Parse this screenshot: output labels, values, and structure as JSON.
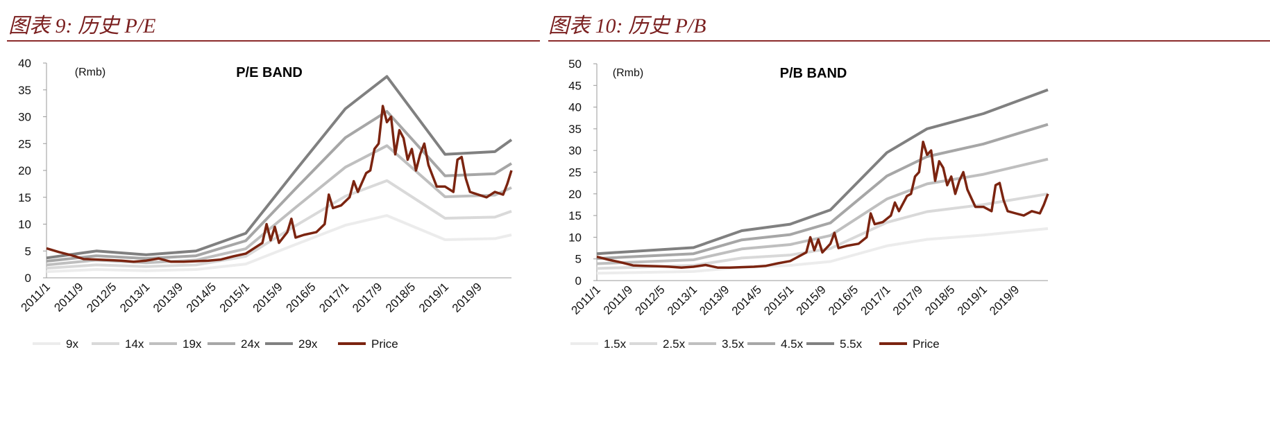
{
  "titles": {
    "left": "图表 9:  历史 P/E",
    "right": "图表 10:  历史 P/B"
  },
  "colors": {
    "title": "#7a1f1f",
    "price": "#7b2410"
  },
  "chart_data": [
    {
      "type": "line",
      "title": "P/E BAND",
      "unit_label": "(Rmb)",
      "ylim": [
        0,
        40
      ],
      "yticks": [
        0,
        5,
        10,
        15,
        20,
        25,
        30,
        35,
        40
      ],
      "xticks": [
        "2011/1",
        "2011/9",
        "2012/5",
        "2013/1",
        "2013/9",
        "2014/5",
        "2015/1",
        "2015/9",
        "2016/5",
        "2017/1",
        "2017/9",
        "2018/5",
        "2019/1",
        "2019/9"
      ],
      "xrange": [
        "2011/1",
        "2020/5"
      ],
      "legend": "bottom",
      "band_dates": [
        "2011/1",
        "2012/1",
        "2013/1",
        "2014/1",
        "2015/1",
        "2016/1",
        "2017/1",
        "2017/11",
        "2019/1",
        "2020/1",
        "2020/5"
      ],
      "series": [
        {
          "name": "9x",
          "color": "#ececec",
          "values": [
            1.15,
            1.55,
            1.33,
            1.55,
            2.57,
            6.2,
            9.8,
            11.6,
            7.1,
            7.3,
            8.0
          ]
        },
        {
          "name": "14x",
          "color": "#d9d9d9",
          "values": [
            1.8,
            2.4,
            2.1,
            2.4,
            4.0,
            9.7,
            15.2,
            18.1,
            11.1,
            11.3,
            12.4
          ]
        },
        {
          "name": "19x",
          "color": "#bfbfbf",
          "values": [
            2.4,
            3.3,
            2.8,
            3.3,
            5.4,
            13.1,
            20.6,
            24.6,
            15.1,
            15.4,
            16.8
          ]
        },
        {
          "name": "24x",
          "color": "#a6a6a6",
          "values": [
            3.1,
            4.1,
            3.6,
            4.1,
            6.9,
            16.6,
            26.1,
            31.0,
            19.0,
            19.4,
            21.3
          ]
        },
        {
          "name": "29x",
          "color": "#808080",
          "values": [
            3.7,
            5.0,
            4.3,
            5.0,
            8.3,
            20.0,
            31.5,
            37.5,
            23.0,
            23.5,
            25.7
          ]
        }
      ],
      "price": {
        "name": "Price",
        "color": "#7b2410",
        "dates": [
          "2011/1",
          "2011/4",
          "2011/7",
          "2011/10",
          "2012/1",
          "2012/4",
          "2012/7",
          "2012/10",
          "2013/1",
          "2013/4",
          "2013/7",
          "2013/10",
          "2014/1",
          "2014/4",
          "2014/7",
          "2014/10",
          "2015/1",
          "2015/3",
          "2015/5",
          "2015/6",
          "2015/7",
          "2015/8",
          "2015/9",
          "2015/11",
          "2015/12",
          "2016/1",
          "2016/3",
          "2016/6",
          "2016/8",
          "2016/9",
          "2016/10",
          "2016/12",
          "2017/2",
          "2017/3",
          "2017/4",
          "2017/6",
          "2017/7",
          "2017/8",
          "2017/9",
          "2017/10",
          "2017/11",
          "2017/12",
          "2018/1",
          "2018/2",
          "2018/3",
          "2018/4",
          "2018/5",
          "2018/6",
          "2018/7",
          "2018/8",
          "2018/9",
          "2018/10",
          "2018/11",
          "2019/1",
          "2019/3",
          "2019/4",
          "2019/5",
          "2019/6",
          "2019/7",
          "2019/9",
          "2019/11",
          "2020/1",
          "2020/3",
          "2020/4",
          "2020/5"
        ],
        "values": [
          5.5,
          4.8,
          4.2,
          3.5,
          3.4,
          3.3,
          3.2,
          3.0,
          3.2,
          3.6,
          3.0,
          3.0,
          3.1,
          3.2,
          3.4,
          4.0,
          4.5,
          5.5,
          6.5,
          10,
          7,
          9.5,
          6.5,
          8.5,
          11,
          7.5,
          8.0,
          8.5,
          10,
          15.5,
          13,
          13.5,
          15,
          18,
          16,
          19.5,
          20,
          24,
          25,
          32,
          29,
          30,
          23,
          27.5,
          26,
          22,
          24,
          20,
          23,
          25,
          21,
          19,
          17,
          17,
          16,
          22,
          22.5,
          18.5,
          16,
          15.5,
          15,
          16,
          15.5,
          17.5,
          20
        ]
      }
    },
    {
      "type": "line",
      "title": "P/B BAND",
      "unit_label": "(Rmb)",
      "ylim": [
        0,
        50
      ],
      "yticks": [
        0,
        5,
        10,
        15,
        20,
        25,
        30,
        35,
        40,
        45,
        50
      ],
      "xticks": [
        "2011/1",
        "2011/9",
        "2012/5",
        "2013/1",
        "2013/9",
        "2014/5",
        "2015/1",
        "2015/9",
        "2016/5",
        "2017/1",
        "2017/9",
        "2018/5",
        "2019/1",
        "2019/9"
      ],
      "xrange": [
        "2011/1",
        "2020/5"
      ],
      "legend": "bottom",
      "band_dates": [
        "2011/1",
        "2013/1",
        "2014/1",
        "2015/1",
        "2015/11",
        "2017/1",
        "2017/11",
        "2019/1",
        "2020/5"
      ],
      "series": [
        {
          "name": "1.5x",
          "color": "#ececec",
          "values": [
            1.7,
            2.1,
            3.1,
            3.5,
            4.4,
            8.0,
            9.5,
            10.5,
            12.0
          ]
        },
        {
          "name": "2.5x",
          "color": "#d9d9d9",
          "values": [
            2.8,
            3.5,
            5.2,
            5.9,
            7.4,
            13.4,
            15.9,
            17.5,
            20.0
          ]
        },
        {
          "name": "3.5x",
          "color": "#bfbfbf",
          "values": [
            3.9,
            4.8,
            7.3,
            8.3,
            10.4,
            18.8,
            22.3,
            24.5,
            28.0
          ]
        },
        {
          "name": "4.5x",
          "color": "#a6a6a6",
          "values": [
            5.1,
            6.2,
            9.4,
            10.6,
            13.3,
            24.1,
            28.6,
            31.5,
            36.0
          ]
        },
        {
          "name": "5.5x",
          "color": "#808080",
          "values": [
            6.2,
            7.6,
            11.5,
            13.0,
            16.3,
            29.5,
            35.0,
            38.5,
            44.0
          ]
        }
      ],
      "price": {
        "name": "Price",
        "color": "#7b2410",
        "dates": [
          "2011/1",
          "2011/4",
          "2011/7",
          "2011/10",
          "2012/1",
          "2012/4",
          "2012/7",
          "2012/10",
          "2013/1",
          "2013/4",
          "2013/7",
          "2013/10",
          "2014/1",
          "2014/4",
          "2014/7",
          "2014/10",
          "2015/1",
          "2015/3",
          "2015/5",
          "2015/6",
          "2015/7",
          "2015/8",
          "2015/9",
          "2015/11",
          "2015/12",
          "2016/1",
          "2016/3",
          "2016/6",
          "2016/8",
          "2016/9",
          "2016/10",
          "2016/12",
          "2017/2",
          "2017/3",
          "2017/4",
          "2017/6",
          "2017/7",
          "2017/8",
          "2017/9",
          "2017/10",
          "2017/11",
          "2017/12",
          "2018/1",
          "2018/2",
          "2018/3",
          "2018/4",
          "2018/5",
          "2018/6",
          "2018/7",
          "2018/8",
          "2018/9",
          "2018/10",
          "2018/11",
          "2019/1",
          "2019/3",
          "2019/4",
          "2019/5",
          "2019/6",
          "2019/7",
          "2019/9",
          "2019/11",
          "2020/1",
          "2020/3",
          "2020/4",
          "2020/5"
        ],
        "values": [
          5.5,
          4.8,
          4.2,
          3.5,
          3.4,
          3.3,
          3.2,
          3.0,
          3.2,
          3.6,
          3.0,
          3.0,
          3.1,
          3.2,
          3.4,
          4.0,
          4.5,
          5.5,
          6.5,
          10,
          7,
          9.5,
          6.5,
          8.5,
          11,
          7.5,
          8.0,
          8.5,
          10,
          15.5,
          13,
          13.5,
          15,
          18,
          16,
          19.5,
          20,
          24,
          25,
          32,
          29,
          30,
          23,
          27.5,
          26,
          22,
          24,
          20,
          23,
          25,
          21,
          19,
          17,
          17,
          16,
          22,
          22.5,
          18.5,
          16,
          15.5,
          15,
          16,
          15.5,
          17.5,
          20
        ]
      }
    }
  ]
}
